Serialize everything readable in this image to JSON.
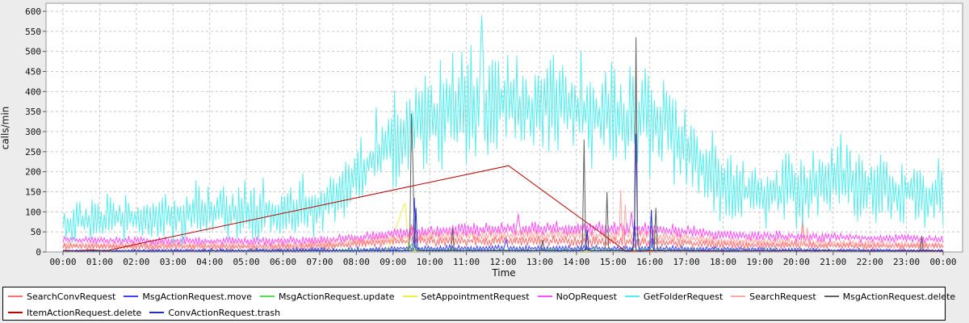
{
  "chart_data": {
    "type": "line",
    "title": "",
    "xlabel": "Time",
    "ylabel": "calls/min",
    "xlim": [
      0,
      24
    ],
    "ylim": [
      0,
      600
    ],
    "y_tick_step": 50,
    "y_tick_labels": [
      "0",
      "50",
      "100",
      "150",
      "200",
      "250",
      "300",
      "350",
      "400",
      "450",
      "500",
      "550",
      "600"
    ],
    "x_tick_labels": [
      "00:00",
      "01:00",
      "02:00",
      "03:00",
      "04:00",
      "05:00",
      "06:00",
      "07:00",
      "08:00",
      "09:00",
      "10:00",
      "11:00",
      "12:00",
      "13:00",
      "14:00",
      "15:00",
      "16:00",
      "17:00",
      "18:00",
      "19:00",
      "20:00",
      "21:00",
      "22:00",
      "23:00",
      "00:00"
    ],
    "grid": true,
    "legend_position": "bottom",
    "plot_bg": "#ffffff",
    "outer_bg": "#ececec",
    "grid_color": "#c8c8c8",
    "plot_border_color": "#999999",
    "series": [
      {
        "name": "SearchConvRequest",
        "color": "#ff7070",
        "seed": 11,
        "baseline": [
          [
            0,
            14
          ],
          [
            5,
            12
          ],
          [
            7,
            13
          ],
          [
            8,
            20
          ],
          [
            9,
            26
          ],
          [
            12,
            27
          ],
          [
            15,
            26
          ],
          [
            17,
            22
          ],
          [
            18,
            18
          ],
          [
            20,
            16
          ],
          [
            22,
            15
          ],
          [
            24,
            14
          ]
        ],
        "noise": [
          [
            0,
            10
          ],
          [
            8,
            14
          ],
          [
            12,
            18
          ],
          [
            17,
            14
          ],
          [
            19,
            11
          ],
          [
            24,
            10
          ]
        ],
        "spikes": [
          [
            9.5,
            68
          ],
          [
            15.3,
            58
          ],
          [
            20.15,
            88
          ]
        ]
      },
      {
        "name": "MsgActionRequest.move",
        "color": "#4040ff",
        "seed": 22,
        "baseline": [
          [
            0,
            3
          ],
          [
            8,
            5
          ],
          [
            9,
            9
          ],
          [
            13,
            9
          ],
          [
            17,
            8
          ],
          [
            20,
            5
          ],
          [
            24,
            4
          ]
        ],
        "noise": [
          [
            0,
            3
          ],
          [
            9,
            9
          ],
          [
            13,
            10
          ],
          [
            17,
            8
          ],
          [
            24,
            3
          ]
        ],
        "spikes": [
          [
            9.6,
            135
          ],
          [
            12.1,
            38
          ],
          [
            15.63,
            295
          ],
          [
            16.1,
            55
          ]
        ]
      },
      {
        "name": "MsgActionRequest.update",
        "color": "#50e050",
        "seed": 33,
        "baseline": [
          [
            0,
            1.5
          ],
          [
            9,
            4
          ],
          [
            17,
            4
          ],
          [
            24,
            2
          ]
        ],
        "noise": [
          [
            0,
            1.5
          ],
          [
            9,
            3.5
          ],
          [
            17,
            3
          ],
          [
            24,
            1.5
          ]
        ],
        "spikes": [
          [
            9.5,
            22
          ],
          [
            14.5,
            12
          ],
          [
            16,
            9
          ]
        ]
      },
      {
        "name": "SetAppointmentRequest",
        "color": "#eeee44",
        "seed": 44,
        "baseline": [
          [
            0,
            1
          ],
          [
            8.75,
            3
          ],
          [
            8.9,
            14
          ],
          [
            9.33,
            126
          ],
          [
            9.42,
            6
          ],
          [
            9.6,
            2
          ],
          [
            24,
            1
          ]
        ],
        "noise": [
          [
            0,
            1.2
          ],
          [
            8.6,
            1.2
          ],
          [
            9.0,
            4
          ],
          [
            9.33,
            2
          ],
          [
            9.6,
            1.2
          ],
          [
            24,
            1.2
          ]
        ],
        "spikes": []
      },
      {
        "name": "NoOpRequest",
        "color": "#ff50ff",
        "seed": 55,
        "baseline": [
          [
            0,
            30
          ],
          [
            2,
            28
          ],
          [
            5,
            26
          ],
          [
            7,
            28
          ],
          [
            8,
            35
          ],
          [
            9,
            45
          ],
          [
            10,
            52
          ],
          [
            12,
            58
          ],
          [
            14,
            58
          ],
          [
            16,
            55
          ],
          [
            17,
            50
          ],
          [
            18,
            42
          ],
          [
            20,
            38
          ],
          [
            22,
            35
          ],
          [
            24,
            32
          ]
        ],
        "noise": [
          [
            0,
            12
          ],
          [
            8,
            15
          ],
          [
            10,
            22
          ],
          [
            16,
            22
          ],
          [
            18,
            16
          ],
          [
            24,
            12
          ]
        ],
        "spikes": [
          [
            12.4,
            95
          ],
          [
            15.5,
            100
          ]
        ]
      },
      {
        "name": "GetFolderRequest",
        "color": "#55eeee",
        "seed": 66,
        "baseline": [
          [
            0,
            75
          ],
          [
            1,
            80
          ],
          [
            2,
            85
          ],
          [
            3,
            95
          ],
          [
            4,
            100
          ],
          [
            5,
            100
          ],
          [
            6,
            105
          ],
          [
            7,
            115
          ],
          [
            7.5,
            140
          ],
          [
            8,
            190
          ],
          [
            8.5,
            240
          ],
          [
            9,
            280
          ],
          [
            9.5,
            300
          ],
          [
            10,
            330
          ],
          [
            10.5,
            350
          ],
          [
            11,
            360
          ],
          [
            11.5,
            380
          ],
          [
            12,
            370
          ],
          [
            13,
            355
          ],
          [
            13.75,
            365
          ],
          [
            14.5,
            340
          ],
          [
            15,
            330
          ],
          [
            15.5,
            320
          ],
          [
            16,
            330
          ],
          [
            16.5,
            320
          ],
          [
            17,
            260
          ],
          [
            17.5,
            205
          ],
          [
            18,
            170
          ],
          [
            18.5,
            150
          ],
          [
            19,
            150
          ],
          [
            20,
            150
          ],
          [
            20.5,
            160
          ],
          [
            21,
            180
          ],
          [
            21.5,
            185
          ],
          [
            22,
            160
          ],
          [
            23,
            150
          ],
          [
            23.5,
            140
          ],
          [
            24,
            150
          ]
        ],
        "noise": [
          [
            0,
            65
          ],
          [
            2,
            80
          ],
          [
            4,
            95
          ],
          [
            6,
            95
          ],
          [
            7,
            100
          ],
          [
            8,
            110
          ],
          [
            9,
            140
          ],
          [
            10,
            150
          ],
          [
            11,
            170
          ],
          [
            11.5,
            200
          ],
          [
            12,
            160
          ],
          [
            13,
            150
          ],
          [
            14,
            160
          ],
          [
            15,
            160
          ],
          [
            16,
            170
          ],
          [
            17,
            130
          ],
          [
            18,
            110
          ],
          [
            19,
            100
          ],
          [
            20,
            110
          ],
          [
            21,
            125
          ],
          [
            22,
            110
          ],
          [
            23,
            100
          ],
          [
            24,
            120
          ]
        ],
        "spikes": [
          [
            11.42,
            590
          ]
        ]
      },
      {
        "name": "SearchRequest",
        "color": "#ffa8a8",
        "seed": 77,
        "baseline": [
          [
            0,
            18
          ],
          [
            6,
            16
          ],
          [
            8,
            25
          ],
          [
            9,
            35
          ],
          [
            10,
            40
          ],
          [
            12,
            42
          ],
          [
            14,
            42
          ],
          [
            16,
            40
          ],
          [
            17,
            35
          ],
          [
            18,
            28
          ],
          [
            20,
            24
          ],
          [
            22,
            20
          ],
          [
            24,
            18
          ]
        ],
        "noise": [
          [
            0,
            10
          ],
          [
            8,
            14
          ],
          [
            10,
            18
          ],
          [
            16,
            18
          ],
          [
            18,
            13
          ],
          [
            24,
            10
          ]
        ],
        "spikes": [
          [
            15.2,
            155
          ],
          [
            15.35,
            118
          ],
          [
            20.3,
            60
          ]
        ]
      },
      {
        "name": "MsgActionRequest.delete",
        "color": "#606060",
        "seed": 88,
        "baseline": [
          [
            0,
            2
          ],
          [
            9,
            3
          ],
          [
            17,
            3
          ],
          [
            24,
            2
          ]
        ],
        "noise": [
          [
            0,
            2
          ],
          [
            24,
            2
          ]
        ],
        "spikes": [
          [
            9.48,
            345
          ],
          [
            9.55,
            215
          ],
          [
            10.62,
            60
          ],
          [
            13.1,
            30
          ],
          [
            14.2,
            280
          ],
          [
            14.85,
            150
          ],
          [
            15.63,
            535
          ],
          [
            16.17,
            110
          ],
          [
            23.4,
            40
          ]
        ]
      },
      {
        "name": "ItemActionRequest.delete",
        "color": "#bb0000",
        "seed": 99,
        "points": [
          [
            0,
            4
          ],
          [
            0.4,
            3
          ],
          [
            0.8,
            5
          ],
          [
            1.2,
            3
          ],
          [
            1.83,
            16
          ],
          [
            12.15,
            215
          ],
          [
            15.35,
            2
          ],
          [
            16.5,
            3
          ],
          [
            18,
            2
          ],
          [
            20,
            3
          ],
          [
            22,
            2
          ],
          [
            24,
            3
          ]
        ]
      },
      {
        "name": "ConvActionRequest.trash",
        "color": "#2030c0",
        "seed": 100,
        "baseline": [
          [
            0,
            2
          ],
          [
            9,
            3
          ],
          [
            17,
            3
          ],
          [
            24,
            2
          ]
        ],
        "noise": [
          [
            0,
            2
          ],
          [
            24,
            2
          ]
        ],
        "spikes": [
          [
            9.63,
            110
          ],
          [
            14.3,
            55
          ],
          [
            15.6,
            80
          ],
          [
            16.05,
            105
          ]
        ]
      }
    ]
  },
  "legend": {
    "row_split": 8
  }
}
